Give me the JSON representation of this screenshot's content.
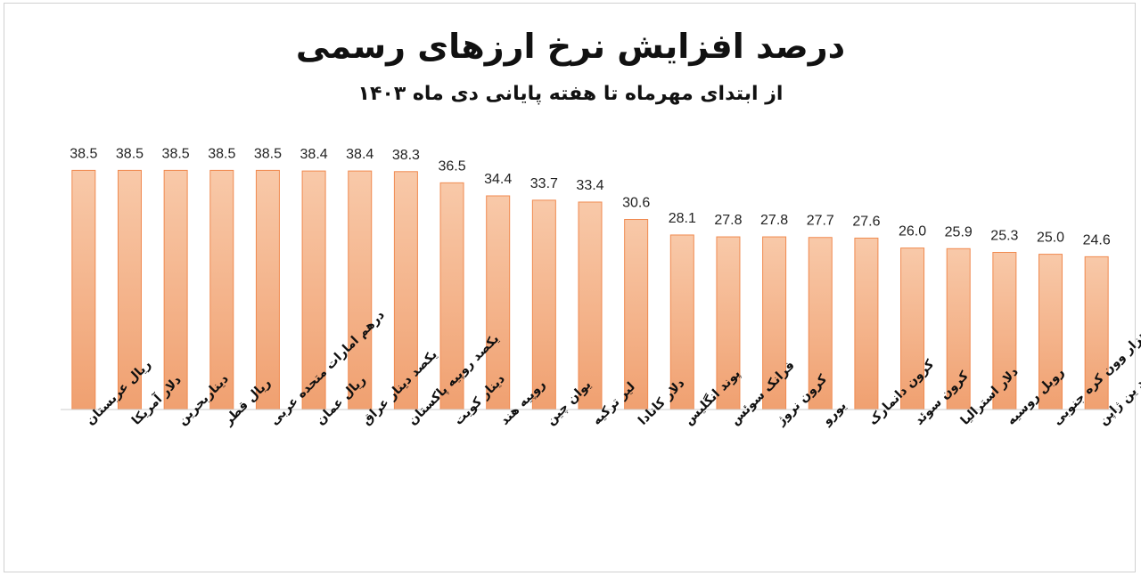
{
  "chart_data": {
    "type": "bar",
    "title": "درصد افزایش نرخ ارزهای رسمی",
    "subtitle": "از ابتدای مهرماه تا هفته پایانی دی ماه ۱۴۰۳",
    "categories": [
      "ریال عربستان",
      "دلار آمریکا",
      "دیناربحرین",
      "ریال قطر",
      "درهم امارات متحده عربی",
      "ریال عمان",
      "یکصد دینار عراق",
      "یکصد روپیه پاکستان",
      "دینار کویت",
      "روپیه هند",
      "یوان چین",
      "لیر ترکیه",
      "دلار کانادا",
      "پوند انگلیس",
      "فرانک سوئس",
      "کرون نروژ",
      "یورو",
      "کرون دانمارک",
      "کرون سوئد",
      "دلار استرالیا",
      "روبل روسیه",
      "یک هزار وون کره جنوبی",
      "یکصد ین ژاپن"
    ],
    "values": [
      38.5,
      38.5,
      38.5,
      38.5,
      38.5,
      38.4,
      38.4,
      38.3,
      36.5,
      34.4,
      33.7,
      33.4,
      30.6,
      28.1,
      27.8,
      27.8,
      27.7,
      27.6,
      26.0,
      25.9,
      25.3,
      25.0,
      24.6
    ],
    "value_labels": [
      "38.5",
      "38.5",
      "38.5",
      "38.5",
      "38.5",
      "38.4",
      "38.4",
      "38.3",
      "36.5",
      "34.4",
      "33.7",
      "33.4",
      "30.6",
      "28.1",
      "27.8",
      "27.8",
      "27.7",
      "27.6",
      "26.0",
      "25.9",
      "25.3",
      "25.0",
      "24.6"
    ],
    "ylim": [
      0,
      43
    ],
    "grid": false,
    "legend": "none",
    "colors": {
      "bar_top": "#f8c9a9",
      "bar_bottom": "#f0a070",
      "bar_stroke": "#f08a50",
      "axis": "#cccccc"
    }
  }
}
